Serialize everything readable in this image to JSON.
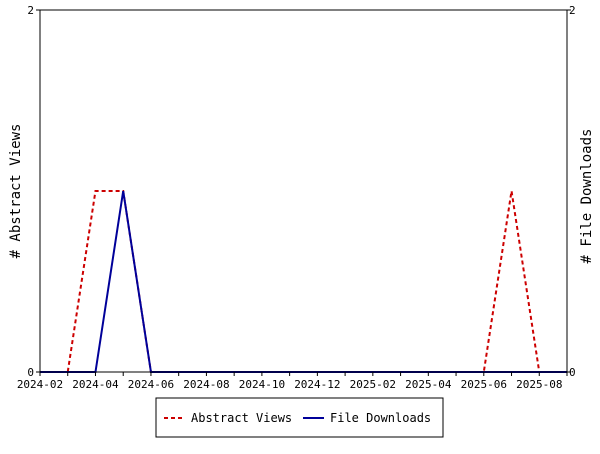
{
  "chart_data": {
    "type": "line",
    "x": [
      "2024-02",
      "2024-03",
      "2024-04",
      "2024-05",
      "2024-06",
      "2024-07",
      "2024-08",
      "2024-09",
      "2024-10",
      "2024-11",
      "2024-12",
      "2025-01",
      "2025-02",
      "2025-03",
      "2025-04",
      "2025-05",
      "2025-06",
      "2025-07",
      "2025-08",
      "2025-09"
    ],
    "x_tick_labels": [
      "2024-02",
      "2024-04",
      "2024-06",
      "2024-08",
      "2024-10",
      "2024-12",
      "2025-02",
      "2025-04",
      "2025-06",
      "2025-08"
    ],
    "series": [
      {
        "name": "Abstract Views",
        "axis": "left",
        "color": "#cc0000",
        "style": "dashed",
        "values": [
          0,
          0,
          1,
          1,
          0,
          0,
          0,
          0,
          0,
          0,
          0,
          0,
          0,
          0,
          0,
          0,
          0,
          1,
          0,
          0
        ]
      },
      {
        "name": "File Downloads",
        "axis": "right",
        "color": "#000099",
        "style": "solid",
        "values": [
          0,
          0,
          0,
          1,
          0,
          0,
          0,
          0,
          0,
          0,
          0,
          0,
          0,
          0,
          0,
          0,
          0,
          0,
          0,
          0
        ]
      }
    ],
    "ylabel_left": "# Abstract Views",
    "ylabel_right": "# File Downloads",
    "ylim_left": [
      0,
      2
    ],
    "ylim_right": [
      0,
      2
    ],
    "y_tick_labels_left": [
      "0",
      "2"
    ],
    "y_tick_labels_right": [
      "0",
      "2"
    ],
    "grid": false,
    "legend_position": "bottom"
  }
}
